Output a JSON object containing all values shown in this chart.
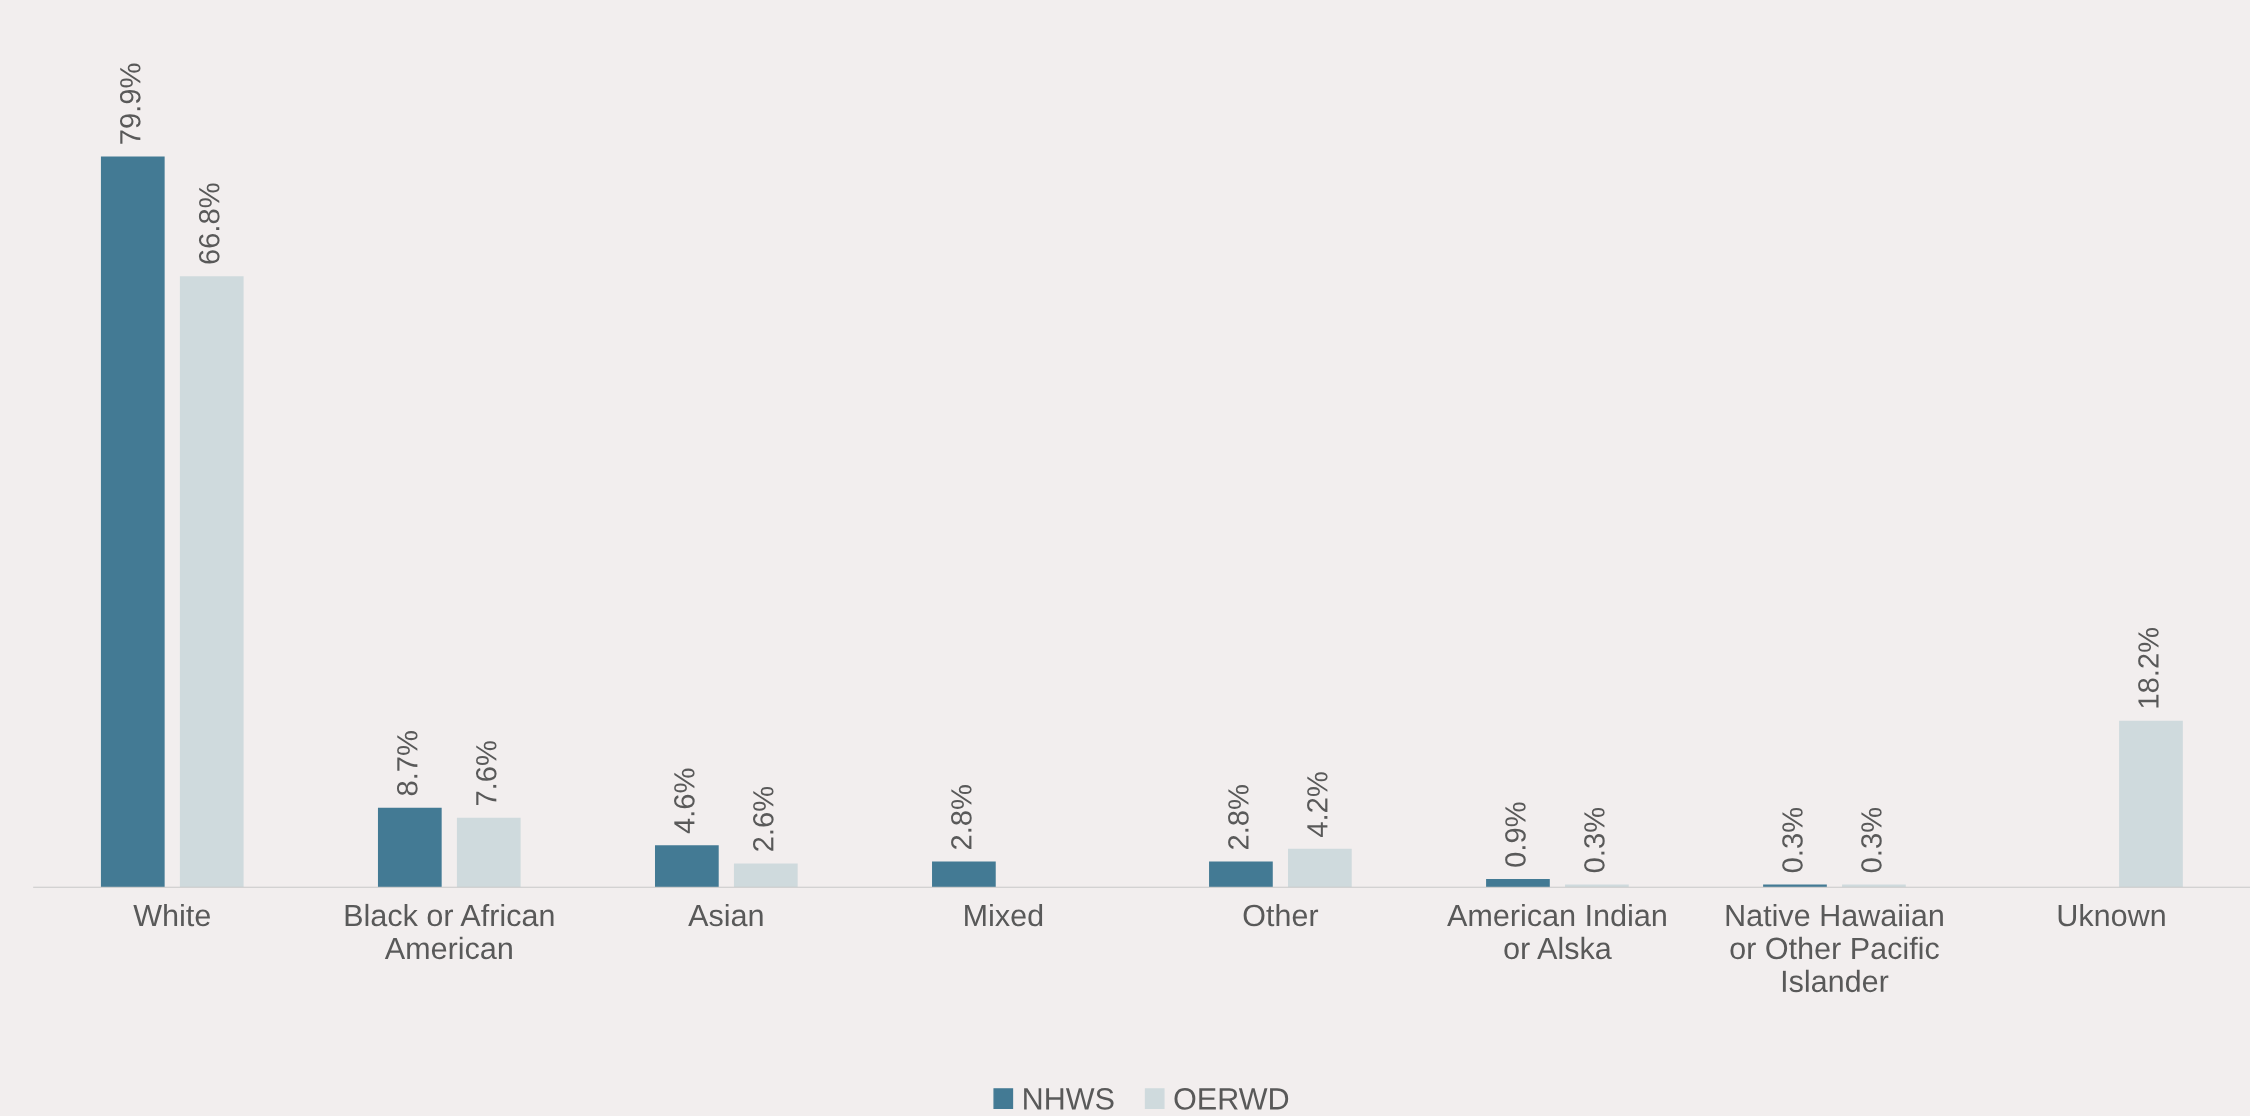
{
  "chart_data": {
    "type": "bar",
    "categories": [
      "White",
      "Black or African\nAmerican",
      "Asian",
      "Mixed",
      "Other",
      "American Indian\nor Alska",
      "Native Hawaiian\nor Other Pacific\nIslander",
      "Uknown"
    ],
    "series": [
      {
        "name": "NHWS",
        "color": "#437a94",
        "values": [
          79.9,
          8.7,
          4.6,
          2.8,
          2.8,
          0.9,
          0.3,
          null
        ],
        "value_labels": [
          "79.9%",
          "8.7%",
          "4.6%",
          "2.8%",
          "2.8%",
          "0.9%",
          "0.3%",
          null
        ]
      },
      {
        "name": "OERWD",
        "color": "#cfdadd",
        "values": [
          66.8,
          7.6,
          2.6,
          null,
          4.2,
          0.3,
          0.3,
          18.2
        ],
        "value_labels": [
          "66.8%",
          "7.6%",
          "2.6%",
          null,
          "4.2%",
          "0.3%",
          "0.3%",
          "18.2%"
        ]
      }
    ],
    "legend": "bottom",
    "grid": false
  }
}
